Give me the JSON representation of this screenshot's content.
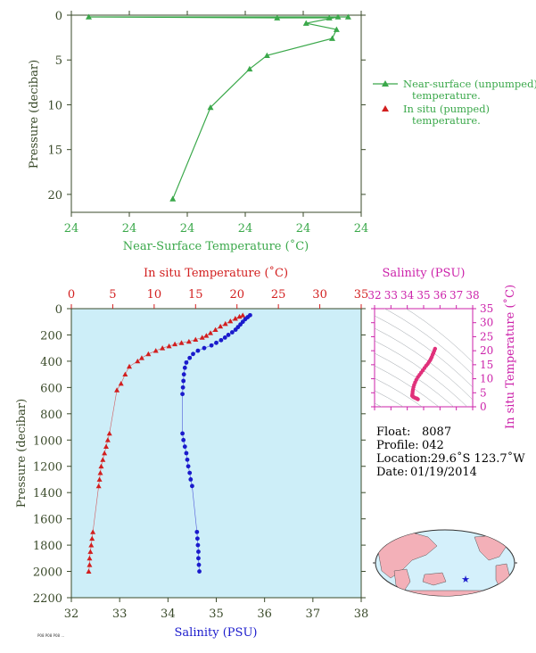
{
  "chart_data": [
    {
      "type": "line",
      "xlabel": "Near-Surface Temperature (˚C)",
      "ylabel": "Pressure (decibar)",
      "x_tick_labels": [
        "24",
        "24",
        "24",
        "24",
        "24",
        "24"
      ],
      "y_ticks": [
        0,
        5,
        10,
        15,
        20
      ],
      "ylim": [
        0,
        22
      ],
      "y_inverted": true,
      "legend": {
        "position": "right",
        "entries": [
          {
            "label": "Near-surface (unpumped) temperature.",
            "color": "#3aa84a",
            "marker": "triangle-line"
          },
          {
            "label": "In situ (pumped) temperature.",
            "color": "#d21e1e",
            "marker": "triangle"
          }
        ]
      },
      "series": [
        {
          "name": "Near-surface (unpumped) temperature.",
          "color": "#3aa84a",
          "points": [
            {
              "x_frac": 0.955,
              "y": 0.2
            },
            {
              "x_frac": 0.06,
              "y": 0.2
            },
            {
              "x_frac": 0.71,
              "y": 0.3
            },
            {
              "x_frac": 0.89,
              "y": 0.3
            },
            {
              "x_frac": 0.92,
              "y": 0.2
            },
            {
              "x_frac": 0.81,
              "y": 0.9
            },
            {
              "x_frac": 0.915,
              "y": 1.6
            },
            {
              "x_frac": 0.9,
              "y": 2.6
            },
            {
              "x_frac": 0.675,
              "y": 4.5
            },
            {
              "x_frac": 0.615,
              "y": 6.0
            },
            {
              "x_frac": 0.48,
              "y": 10.3
            },
            {
              "x_frac": 0.35,
              "y": 20.5
            }
          ]
        }
      ]
    },
    {
      "type": "line",
      "xlabel": "Salinity (PSU)",
      "x2label": "In situ Temperature (˚C)",
      "ylabel": "Pressure (decibar)",
      "xlim": [
        32,
        38
      ],
      "x2lim": [
        0,
        35
      ],
      "ylim": [
        0,
        2200
      ],
      "y_inverted": true,
      "x_ticks": [
        32,
        33,
        34,
        35,
        36,
        37,
        38
      ],
      "x2_ticks": [
        0,
        5,
        10,
        15,
        20,
        25,
        30,
        35
      ],
      "y_ticks": [
        0,
        200,
        400,
        600,
        800,
        1000,
        1200,
        1400,
        1600,
        1800,
        2000,
        2200
      ],
      "series": [
        {
          "name": "In situ Temperature (˚C)",
          "axis": "top",
          "color": "#d21e1e",
          "marker": "triangle",
          "points": [
            {
              "x": 20.7,
              "y": 50
            },
            {
              "x": 20.3,
              "y": 60
            },
            {
              "x": 19.8,
              "y": 75
            },
            {
              "x": 19.2,
              "y": 95
            },
            {
              "x": 18.6,
              "y": 115
            },
            {
              "x": 18.0,
              "y": 135
            },
            {
              "x": 17.4,
              "y": 160
            },
            {
              "x": 16.8,
              "y": 185
            },
            {
              "x": 16.3,
              "y": 205
            },
            {
              "x": 15.8,
              "y": 220
            },
            {
              "x": 15.0,
              "y": 235
            },
            {
              "x": 14.2,
              "y": 250
            },
            {
              "x": 13.3,
              "y": 260
            },
            {
              "x": 12.5,
              "y": 270
            },
            {
              "x": 11.8,
              "y": 285
            },
            {
              "x": 11.0,
              "y": 300
            },
            {
              "x": 10.2,
              "y": 320
            },
            {
              "x": 9.3,
              "y": 345
            },
            {
              "x": 8.5,
              "y": 375
            },
            {
              "x": 8.0,
              "y": 400
            },
            {
              "x": 7.0,
              "y": 440
            },
            {
              "x": 6.5,
              "y": 500
            },
            {
              "x": 6.0,
              "y": 570
            },
            {
              "x": 5.5,
              "y": 620
            },
            {
              "x": 4.6,
              "y": 950
            },
            {
              "x": 4.4,
              "y": 1000
            },
            {
              "x": 4.2,
              "y": 1050
            },
            {
              "x": 4.0,
              "y": 1100
            },
            {
              "x": 3.8,
              "y": 1150
            },
            {
              "x": 3.6,
              "y": 1200
            },
            {
              "x": 3.5,
              "y": 1250
            },
            {
              "x": 3.4,
              "y": 1300
            },
            {
              "x": 3.3,
              "y": 1350
            },
            {
              "x": 2.6,
              "y": 1700
            },
            {
              "x": 2.5,
              "y": 1750
            },
            {
              "x": 2.4,
              "y": 1800
            },
            {
              "x": 2.3,
              "y": 1850
            },
            {
              "x": 2.2,
              "y": 1900
            },
            {
              "x": 2.2,
              "y": 1950
            },
            {
              "x": 2.1,
              "y": 2000
            }
          ]
        },
        {
          "name": "Salinity (PSU)",
          "axis": "bottom",
          "color": "#1a1acc",
          "marker": "circle",
          "points": [
            {
              "x": 35.7,
              "y": 50
            },
            {
              "x": 35.65,
              "y": 65
            },
            {
              "x": 35.6,
              "y": 80
            },
            {
              "x": 35.55,
              "y": 100
            },
            {
              "x": 35.5,
              "y": 120
            },
            {
              "x": 35.45,
              "y": 140
            },
            {
              "x": 35.4,
              "y": 160
            },
            {
              "x": 35.33,
              "y": 180
            },
            {
              "x": 35.25,
              "y": 200
            },
            {
              "x": 35.18,
              "y": 220
            },
            {
              "x": 35.1,
              "y": 240
            },
            {
              "x": 35.0,
              "y": 260
            },
            {
              "x": 34.9,
              "y": 280
            },
            {
              "x": 34.75,
              "y": 300
            },
            {
              "x": 34.62,
              "y": 320
            },
            {
              "x": 34.52,
              "y": 345
            },
            {
              "x": 34.45,
              "y": 375
            },
            {
              "x": 34.38,
              "y": 410
            },
            {
              "x": 34.35,
              "y": 450
            },
            {
              "x": 34.33,
              "y": 500
            },
            {
              "x": 34.32,
              "y": 550
            },
            {
              "x": 34.31,
              "y": 600
            },
            {
              "x": 34.3,
              "y": 650
            },
            {
              "x": 34.3,
              "y": 950
            },
            {
              "x": 34.32,
              "y": 1000
            },
            {
              "x": 34.35,
              "y": 1050
            },
            {
              "x": 34.38,
              "y": 1100
            },
            {
              "x": 34.4,
              "y": 1150
            },
            {
              "x": 34.42,
              "y": 1200
            },
            {
              "x": 34.45,
              "y": 1250
            },
            {
              "x": 34.47,
              "y": 1300
            },
            {
              "x": 34.5,
              "y": 1350
            },
            {
              "x": 34.6,
              "y": 1700
            },
            {
              "x": 34.61,
              "y": 1750
            },
            {
              "x": 34.62,
              "y": 1800
            },
            {
              "x": 34.63,
              "y": 1850
            },
            {
              "x": 34.63,
              "y": 1900
            },
            {
              "x": 34.64,
              "y": 1950
            },
            {
              "x": 34.65,
              "y": 2000
            }
          ]
        }
      ]
    },
    {
      "type": "scatter",
      "xlabel": "Salinity (PSU)",
      "ylabel": "In situ Temperature (˚C)",
      "xlim": [
        32,
        38
      ],
      "ylim": [
        0,
        35
      ],
      "x_ticks": [
        32,
        33,
        34,
        35,
        36,
        37,
        38
      ],
      "y_ticks": [
        0,
        5,
        10,
        15,
        20,
        25,
        30,
        35
      ],
      "color": "#e0307a",
      "points": [
        {
          "x": 35.7,
          "y": 20.7
        },
        {
          "x": 35.65,
          "y": 20.0
        },
        {
          "x": 35.6,
          "y": 19.2
        },
        {
          "x": 35.55,
          "y": 18.6
        },
        {
          "x": 35.5,
          "y": 17.8
        },
        {
          "x": 35.45,
          "y": 17.2
        },
        {
          "x": 35.4,
          "y": 16.6
        },
        {
          "x": 35.33,
          "y": 16.0
        },
        {
          "x": 35.25,
          "y": 15.3
        },
        {
          "x": 35.15,
          "y": 14.6
        },
        {
          "x": 35.05,
          "y": 13.8
        },
        {
          "x": 34.95,
          "y": 13.0
        },
        {
          "x": 34.85,
          "y": 12.2
        },
        {
          "x": 34.75,
          "y": 11.4
        },
        {
          "x": 34.65,
          "y": 10.6
        },
        {
          "x": 34.55,
          "y": 9.6
        },
        {
          "x": 34.48,
          "y": 8.7
        },
        {
          "x": 34.42,
          "y": 7.8
        },
        {
          "x": 34.38,
          "y": 7.0
        },
        {
          "x": 34.35,
          "y": 6.2
        },
        {
          "x": 34.33,
          "y": 5.5
        },
        {
          "x": 34.32,
          "y": 4.8
        },
        {
          "x": 34.31,
          "y": 4.3
        },
        {
          "x": 34.3,
          "y": 3.9
        },
        {
          "x": 34.35,
          "y": 3.6
        },
        {
          "x": 34.4,
          "y": 3.4
        },
        {
          "x": 34.47,
          "y": 3.2
        },
        {
          "x": 34.55,
          "y": 3.0
        },
        {
          "x": 34.6,
          "y": 2.9
        },
        {
          "x": 34.65,
          "y": 2.7
        }
      ]
    }
  ],
  "info": {
    "float_label": "Float:",
    "float_value": "8087",
    "profile_label": "Profile:",
    "profile_value": "042",
    "location_label": "Location:",
    "location_value": "29.6˚S  123.7˚W",
    "date_label": "Date:",
    "date_value": "01/19/2014"
  },
  "footer_note": "P08 P08 P08 ...",
  "colors": {
    "green": "#3aa84a",
    "red": "#d21e1e",
    "blue": "#1a1acc",
    "magenta": "#cc22aa",
    "ts_points": "#e0307a",
    "axis": "#3a4a2a",
    "plot_bg": "#cdeef8",
    "ocean": "#d4f0fb",
    "land": "#f3b0b8"
  }
}
